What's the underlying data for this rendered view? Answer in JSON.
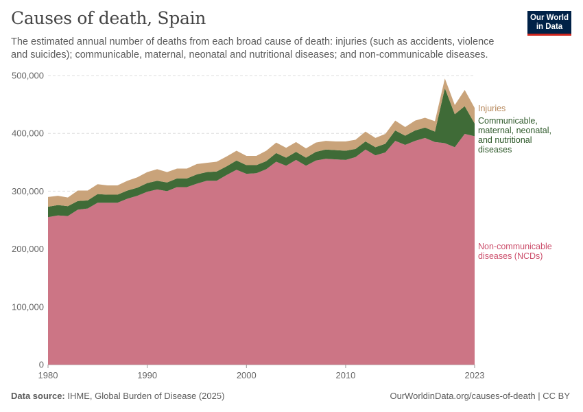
{
  "header": {
    "title": "Causes of death, Spain",
    "subtitle": "The estimated annual number of deaths from each broad cause of death: injuries (such as accidents, violence and suicides); communicable, maternal, neonatal and nutritional diseases; and non-communicable diseases.",
    "logo_line1": "Our World",
    "logo_line2": "in Data"
  },
  "footer": {
    "source_label": "Data source:",
    "source_text": "IHME, Global Burden of Disease (2025)",
    "url_text": "OurWorldinData.org/causes-of-death | CC BY"
  },
  "chart_data": {
    "type": "area",
    "stacked": true,
    "x": [
      1980,
      1981,
      1982,
      1983,
      1984,
      1985,
      1986,
      1987,
      1988,
      1989,
      1990,
      1991,
      1992,
      1993,
      1994,
      1995,
      1996,
      1997,
      1998,
      1999,
      2000,
      2001,
      2002,
      2003,
      2004,
      2005,
      2006,
      2007,
      2008,
      2009,
      2010,
      2011,
      2012,
      2013,
      2014,
      2015,
      2016,
      2017,
      2018,
      2019,
      2020,
      2021,
      2022,
      2023
    ],
    "ylim": [
      0,
      500000
    ],
    "yticks": [
      0,
      100000,
      200000,
      300000,
      400000,
      500000
    ],
    "ytick_labels": [
      "0",
      "100,000",
      "200,000",
      "300,000",
      "400,000",
      "500,000"
    ],
    "xticks": [
      1980,
      1990,
      2000,
      2010,
      2023
    ],
    "xtick_labels": [
      "1980",
      "1990",
      "2000",
      "2010",
      "2023"
    ],
    "grid": "horizontal dashed",
    "legend_position": "right (inline labels)",
    "series": [
      {
        "name": "Non-communicable diseases (NCDs)",
        "label_lines": [
          "Non-communicable",
          "diseases (NCDs)"
        ],
        "color": "#cc7585",
        "label_color": "#cc4f6c",
        "values": [
          255000,
          258000,
          257000,
          268000,
          270000,
          280000,
          280000,
          280000,
          287000,
          292000,
          299000,
          303000,
          300000,
          307000,
          307000,
          313000,
          318000,
          318000,
          328000,
          337000,
          330000,
          331000,
          338000,
          351000,
          344000,
          354000,
          344000,
          353000,
          356000,
          355000,
          354000,
          359000,
          372000,
          362000,
          367000,
          387000,
          380000,
          387000,
          392000,
          385000,
          383000,
          376000,
          399000,
          395000
        ]
      },
      {
        "name": "Communicable, maternal, neonatal, and nutritional diseases",
        "label_lines": [
          "Communicable,",
          "maternal, neonatal,",
          "and nutritional",
          "diseases"
        ],
        "color": "#3f6b37",
        "label_color": "#2f5a2b",
        "values": [
          18000,
          18000,
          17000,
          15000,
          14000,
          15000,
          14000,
          14000,
          14000,
          14000,
          15000,
          15000,
          15000,
          15000,
          15000,
          16000,
          15000,
          16000,
          15000,
          16000,
          15000,
          14000,
          14000,
          15000,
          14000,
          14000,
          14000,
          15000,
          16000,
          16000,
          16000,
          14000,
          14000,
          14000,
          15000,
          18000,
          16000,
          18000,
          18000,
          18000,
          95000,
          57000,
          48000,
          22000
        ]
      },
      {
        "name": "Injuries",
        "label_lines": [
          "Injuries"
        ],
        "color": "#c9a37a",
        "label_color": "#b6875a",
        "values": [
          17000,
          16000,
          15000,
          18000,
          17000,
          17000,
          16000,
          16000,
          17000,
          18000,
          19000,
          20000,
          18000,
          17000,
          17000,
          18000,
          16000,
          17000,
          17000,
          17000,
          16000,
          16000,
          18000,
          18000,
          17000,
          17000,
          16000,
          16000,
          15000,
          15000,
          16000,
          16000,
          17000,
          16000,
          17000,
          17000,
          15000,
          17000,
          17000,
          18000,
          17000,
          16000,
          28000,
          27000
        ]
      }
    ]
  }
}
